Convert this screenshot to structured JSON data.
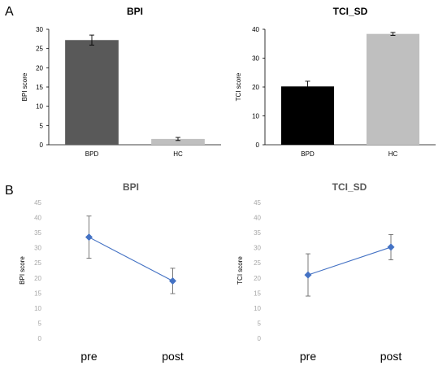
{
  "panels": {
    "a": "A",
    "b": "B"
  },
  "colors": {
    "bpd_bar_bpi": "#595959",
    "hc_bar_bpi": "#bfbfbf",
    "bpd_bar_tci": "#000000",
    "hc_bar_tci": "#bfbfbf",
    "line": "#4472c4",
    "muted_text": "#a6a6a6",
    "muted_title": "#595959"
  },
  "chart_data": [
    {
      "type": "bar",
      "title": "BPI",
      "ylabel": "BPI score",
      "categories": [
        "BPD",
        "HC"
      ],
      "values": [
        27.2,
        1.5
      ],
      "errors": [
        1.3,
        0.4
      ],
      "ylim": [
        0,
        30
      ],
      "yticks": [
        "0",
        "5",
        "10",
        "15",
        "20",
        "25",
        "30"
      ],
      "grid": false
    },
    {
      "type": "bar",
      "title": "TCI_SD",
      "ylabel": "TCI score",
      "categories": [
        "BPD",
        "HC"
      ],
      "values": [
        20.2,
        38.4
      ],
      "errors": [
        1.8,
        0.5
      ],
      "ylim": [
        0,
        40
      ],
      "yticks": [
        "0",
        "10",
        "20",
        "30",
        "40"
      ],
      "grid": false
    },
    {
      "type": "line",
      "title": "BPI",
      "ylabel": "BPI score",
      "categories": [
        "pre",
        "post"
      ],
      "values": [
        33.5,
        19.0
      ],
      "errors": [
        7.0,
        4.2
      ],
      "ylim": [
        0,
        45
      ],
      "yticks": [
        "0",
        "5",
        "10",
        "15",
        "20",
        "25",
        "30",
        "35",
        "40",
        "45"
      ],
      "grid": false
    },
    {
      "type": "line",
      "title": "TCI_SD",
      "ylabel": "TCI score",
      "categories": [
        "pre",
        "post"
      ],
      "values": [
        21.0,
        30.2
      ],
      "errors": [
        7.0,
        4.2
      ],
      "ylim": [
        0,
        45
      ],
      "yticks": [
        "0",
        "5",
        "10",
        "15",
        "20",
        "25",
        "30",
        "35",
        "40",
        "45"
      ],
      "grid": false
    }
  ]
}
